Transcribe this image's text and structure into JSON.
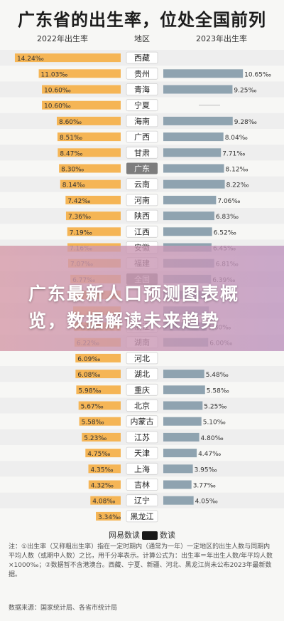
{
  "title": "广东省的出生率，位处全国前列",
  "headers": {
    "left": "2022年出生率",
    "middle": "地区",
    "right": "2023年出生率"
  },
  "overlay_title": "广东最新人口预测图表概览，数据解读未来趋势",
  "brand": {
    "left": "网易数读",
    "right": "数读"
  },
  "note": "注：①出生率（又称粗出生率）指在一定时期内（通常为一年）一定地区的出生人数与同期内平均人数（或期中人数）之比，用千分率表示。计算公式为：出生率＝年出生人数/年平均人数×1000‰；②数据暂不含港澳台。西藏、宁夏、新疆、河北、黑龙江尚未公布2023年最新数据。",
  "source": "数据来源：国家统计局、各省市统计局",
  "colors": {
    "bar2022": "#f5b555",
    "bar2023": "#8fa3b0",
    "highlight_label_bg": "#7d7d7d",
    "row_alt": "#eeeeee"
  },
  "chart_data": {
    "type": "bar",
    "title": "广东省的出生率，位处全国前列",
    "xlabel": "",
    "ylabel": "",
    "xlim": [
      0,
      15
    ],
    "categories": [
      "西藏",
      "贵州",
      "青海",
      "宁夏",
      "海南",
      "广西",
      "甘肃",
      "广东",
      "云南",
      "河南",
      "陕西",
      "江西",
      "安徽",
      "福建",
      "全国",
      "",
      "",
      "浙江",
      "湖南",
      "河北",
      "湖北",
      "重庆",
      "北京",
      "内蒙古",
      "江苏",
      "天津",
      "上海",
      "吉林",
      "辽宁",
      "黑龙江"
    ],
    "series": [
      {
        "name": "2022年出生率",
        "values": [
          14.24,
          11.03,
          10.6,
          10.6,
          8.6,
          8.51,
          8.47,
          8.3,
          8.14,
          7.42,
          7.36,
          7.19,
          7.16,
          7.07,
          6.77,
          6.6,
          6.4,
          6.28,
          6.22,
          6.09,
          6.08,
          5.98,
          5.67,
          5.58,
          5.23,
          4.75,
          4.35,
          4.32,
          4.08,
          3.34
        ],
        "labels": [
          "14.24‰",
          "11.03‰",
          "10.60‰",
          "10.60‰",
          "8.60‰",
          "8.51‰",
          "8.47‰",
          "8.30‰",
          "8.14‰",
          "7.42‰",
          "7.36‰",
          "7.19‰",
          "7.16‰",
          "7.07‰",
          "6.77‰",
          "",
          "",
          "6.28‰",
          "6.22‰",
          "6.09‰",
          "6.08‰",
          "5.98‰",
          "5.67‰",
          "5.58‰",
          "5.23‰",
          "4.75‰",
          "4.35‰",
          "4.32‰",
          "4.08‰",
          "3.34‰"
        ]
      },
      {
        "name": "2023年出生率",
        "values": [
          null,
          10.65,
          9.25,
          null,
          9.28,
          8.04,
          7.71,
          8.12,
          8.22,
          7.06,
          6.83,
          6.52,
          6.45,
          6.81,
          6.39,
          6.3,
          6.1,
          5.8,
          6.0,
          null,
          5.48,
          5.58,
          5.25,
          5.1,
          4.8,
          4.47,
          3.95,
          3.77,
          4.05,
          null
        ],
        "labels": [
          "",
          "10.65‰",
          "9.25‰",
          "",
          "9.28‰",
          "8.04‰",
          "7.71‰",
          "8.12‰",
          "8.22‰",
          "7.06‰",
          "6.83‰",
          "6.52‰",
          "6.45‰",
          "6.81‰",
          "6.39‰",
          "",
          "",
          "5.80‰",
          "6.00‰",
          "",
          "5.48‰",
          "5.58‰",
          "5.25‰",
          "5.10‰",
          "4.80‰",
          "4.47‰",
          "3.95‰",
          "3.77‰",
          "4.05‰",
          ""
        ]
      }
    ],
    "highlight": [
      "广东",
      "全国"
    ]
  }
}
